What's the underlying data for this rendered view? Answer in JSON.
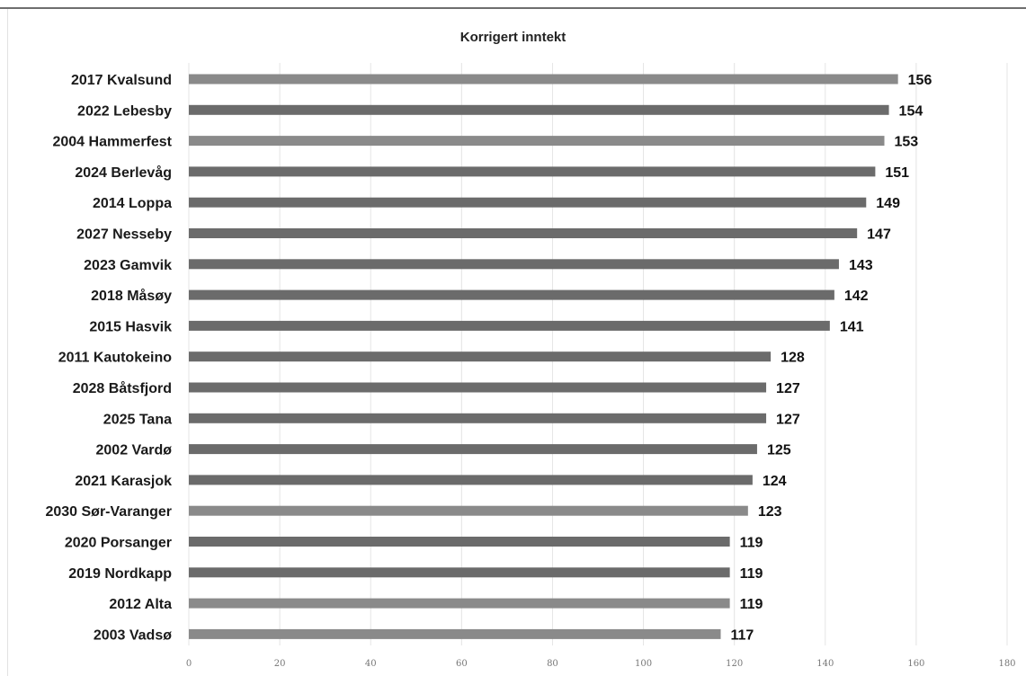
{
  "chart_data": {
    "type": "bar",
    "orientation": "horizontal",
    "title": "Korrigert inntekt",
    "categories": [
      "2017 Kvalsund",
      "2022 Lebesby",
      "2004 Hammerfest",
      "2024 Berlevåg",
      "2014 Loppa",
      "2027 Nesseby",
      "2023 Gamvik",
      "2018 Måsøy",
      "2015 Hasvik",
      "2011 Kautokeino",
      "2028 Båtsfjord",
      "2025 Tana",
      "2002 Vardø",
      "2021 Karasjok",
      "2030 Sør-Varanger",
      "2020 Porsanger",
      "2019 Nordkapp",
      "2012 Alta",
      "2003 Vadsø"
    ],
    "values": [
      156,
      154,
      153,
      151,
      149,
      147,
      143,
      142,
      141,
      128,
      127,
      127,
      125,
      124,
      123,
      119,
      119,
      119,
      117
    ],
    "xlim": [
      0,
      180
    ],
    "xticks": [
      "0",
      "20",
      "40",
      "60",
      "80",
      "100",
      "120",
      "140",
      "160",
      "180"
    ],
    "grid": true,
    "bar_color": "#6b6b6b",
    "bar_color_light": "#8a8a8a"
  }
}
